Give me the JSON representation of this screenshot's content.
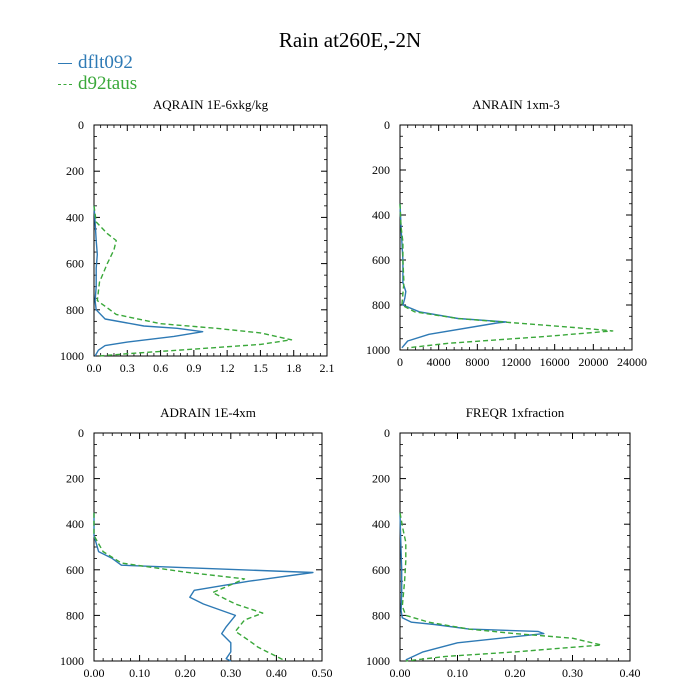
{
  "title": "Rain at260E,-2N",
  "legend": [
    {
      "name": "dflt092",
      "color": "#2e7ab5",
      "dash": "solid"
    },
    {
      "name": "d92taus",
      "color": "#3aa83a",
      "dash": "dashed"
    }
  ],
  "chart_data": [
    {
      "type": "line",
      "title": "AQRAIN  1E-6xkg/kg",
      "xlim": [
        0,
        2.1
      ],
      "xticks": [
        "0.0",
        "0.3",
        "0.6",
        "0.9",
        "1.2",
        "1.5",
        "1.8",
        "2.1"
      ],
      "ylim": [
        1000,
        0
      ],
      "yticks": [
        "0",
        "200",
        "400",
        "600",
        "800",
        "1000"
      ],
      "series": [
        {
          "name": "dflt092",
          "x": [
            0,
            0.01,
            0.02,
            0.03,
            0.02,
            0.02,
            0.01,
            0.02,
            0.1,
            0.45,
            0.75,
            0.98,
            0.72,
            0.3,
            0.1,
            0.04,
            0.01
          ],
          "y": [
            350,
            420,
            500,
            560,
            620,
            700,
            760,
            800,
            840,
            870,
            880,
            895,
            915,
            940,
            955,
            975,
            1000
          ]
        },
        {
          "name": "d92taus",
          "x": [
            0,
            0.02,
            0.12,
            0.2,
            0.18,
            0.12,
            0.05,
            0.03,
            0.2,
            0.6,
            1.1,
            1.5,
            1.78,
            1.5,
            0.9,
            0.3,
            0.05
          ],
          "y": [
            350,
            420,
            470,
            500,
            540,
            600,
            680,
            760,
            820,
            860,
            880,
            900,
            930,
            950,
            970,
            990,
            1000
          ]
        }
      ]
    },
    {
      "type": "line",
      "title": "ANRAIN  1xm-3",
      "xlim": [
        0,
        24000
      ],
      "xticks": [
        "0",
        "4000",
        "8000",
        "12000",
        "16000",
        "20000",
        "24000"
      ],
      "ylim": [
        1000,
        0
      ],
      "yticks": [
        "0",
        "200",
        "400",
        "600",
        "800",
        "1000"
      ],
      "series": [
        {
          "name": "dflt092",
          "x": [
            0,
            100,
            200,
            300,
            300,
            600,
            500,
            300,
            2000,
            6000,
            11000,
            10000,
            3000,
            800,
            200
          ],
          "y": [
            350,
            450,
            520,
            600,
            700,
            740,
            770,
            800,
            830,
            860,
            875,
            880,
            930,
            960,
            990
          ]
        },
        {
          "name": "d92taus",
          "x": [
            0,
            100,
            300,
            300,
            400,
            200,
            1500,
            6000,
            12000,
            18000,
            22000,
            15000,
            5000,
            800
          ],
          "y": [
            350,
            450,
            520,
            600,
            700,
            800,
            830,
            860,
            880,
            900,
            915,
            940,
            970,
            990
          ]
        }
      ]
    },
    {
      "type": "line",
      "title": "ADRAIN  1E-4xm",
      "xlim": [
        0,
        0.5
      ],
      "xticks": [
        "0.00",
        "0.10",
        "0.20",
        "0.30",
        "0.40",
        "0.50"
      ],
      "ylim": [
        1000,
        0
      ],
      "yticks": [
        "0",
        "200",
        "400",
        "600",
        "800",
        "1000"
      ],
      "series": [
        {
          "name": "dflt092",
          "x": [
            0,
            0,
            0.01,
            0.04,
            0.06,
            0.48,
            0.34,
            0.22,
            0.21,
            0.24,
            0.31,
            0.29,
            0.28,
            0.3,
            0.3,
            0.29,
            0.3
          ],
          "y": [
            350,
            450,
            520,
            550,
            580,
            612,
            650,
            690,
            720,
            750,
            800,
            850,
            880,
            920,
            960,
            990,
            1000
          ]
        },
        {
          "name": "d92taus",
          "x": [
            0,
            0,
            0.02,
            0.06,
            0.2,
            0.33,
            0.26,
            0.31,
            0.37,
            0.33,
            0.31,
            0.34,
            0.36,
            0.4,
            0.42
          ],
          "y": [
            350,
            450,
            520,
            570,
            610,
            640,
            700,
            750,
            790,
            820,
            870,
            910,
            940,
            980,
            1000
          ]
        }
      ]
    },
    {
      "type": "line",
      "title": "FREQR  1xfraction",
      "xlim": [
        0,
        0.4
      ],
      "xticks": [
        "0.00",
        "0.10",
        "0.20",
        "0.30",
        "0.40"
      ],
      "ylim": [
        1000,
        0
      ],
      "yticks": [
        "0",
        "200",
        "400",
        "600",
        "800",
        "1000"
      ],
      "series": [
        {
          "name": "dflt092",
          "x": [
            0,
            0.001,
            0.002,
            0.003,
            0.003,
            0.002,
            0.004,
            0.02,
            0.06,
            0.12,
            0.24,
            0.25,
            0.1,
            0.04,
            0.01
          ],
          "y": [
            350,
            450,
            520,
            600,
            700,
            780,
            810,
            830,
            840,
            860,
            870,
            880,
            920,
            960,
            995
          ]
        },
        {
          "name": "d92taus",
          "x": [
            0,
            0.005,
            0.01,
            0.01,
            0.008,
            0.004,
            0.01,
            0.05,
            0.12,
            0.2,
            0.3,
            0.35,
            0.2,
            0.08,
            0.01
          ],
          "y": [
            350,
            420,
            480,
            560,
            650,
            760,
            800,
            830,
            860,
            880,
            900,
            930,
            960,
            980,
            1000
          ]
        }
      ]
    }
  ]
}
